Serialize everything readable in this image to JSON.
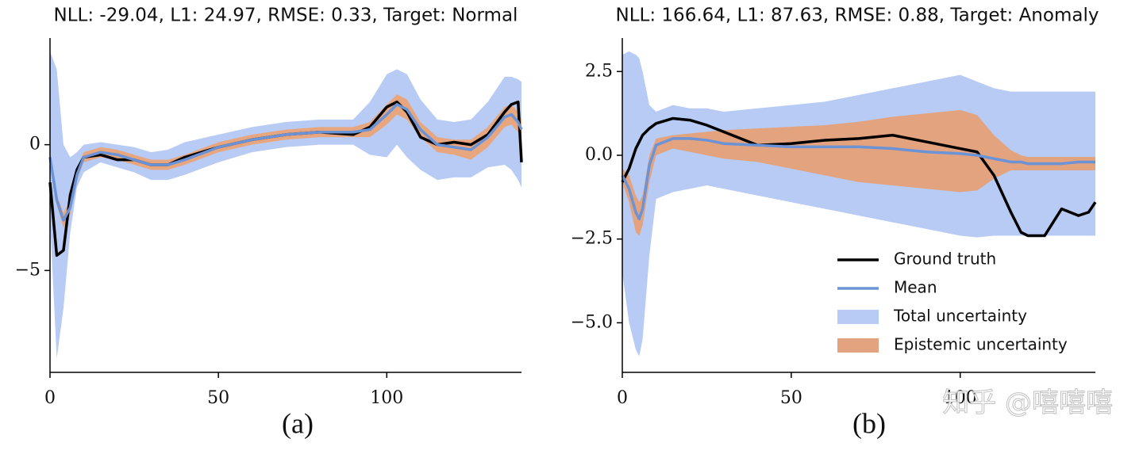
{
  "chart_data": [
    {
      "type": "line",
      "title": "NLL: -29.04, L1: 24.97, RMSE: 0.33, Target: Normal",
      "caption": "(a)",
      "x": [
        0,
        2,
        4,
        6,
        8,
        10,
        15,
        20,
        25,
        30,
        35,
        40,
        50,
        60,
        70,
        80,
        90,
        95,
        100,
        103,
        106,
        110,
        115,
        120,
        125,
        130,
        135,
        137,
        139,
        140
      ],
      "xlim": [
        0,
        140
      ],
      "xticks": [
        0,
        50,
        100
      ],
      "ylim": [
        -9.05,
        4.24
      ],
      "yticks": [
        {
          "value": -5,
          "label": "−5"
        },
        0
      ],
      "series": [
        {
          "color": "#000000",
          "values": [
            -1.5,
            -4.4,
            -4.2,
            -2.0,
            -1.0,
            -0.5,
            -0.4,
            -0.6,
            -0.6,
            -0.8,
            -0.8,
            -0.5,
            -0.1,
            0.2,
            0.4,
            0.5,
            0.4,
            0.7,
            1.5,
            1.7,
            1.3,
            0.3,
            0.0,
            0.1,
            0.0,
            0.4,
            1.3,
            1.6,
            1.7,
            -0.7
          ]
        },
        {
          "color": "#6b93d6",
          "values": [
            -0.5,
            -2.2,
            -3.0,
            -2.5,
            -1.2,
            -0.5,
            -0.3,
            -0.4,
            -0.6,
            -0.8,
            -0.8,
            -0.6,
            -0.1,
            0.2,
            0.4,
            0.5,
            0.5,
            0.6,
            1.2,
            1.6,
            1.4,
            0.6,
            0.0,
            -0.1,
            -0.2,
            0.3,
            1.1,
            1.2,
            0.9,
            0.6
          ]
        },
        {
          "color": "#b7cbf4",
          "upper": [
            3.7,
            3.0,
            0.0,
            -0.5,
            -0.3,
            0.0,
            0.1,
            0.0,
            -0.1,
            -0.3,
            -0.2,
            0.1,
            0.4,
            0.7,
            0.9,
            1.0,
            1.0,
            1.7,
            2.8,
            3.0,
            2.8,
            1.8,
            1.0,
            0.9,
            1.0,
            1.7,
            2.7,
            2.7,
            2.6,
            2.5
          ],
          "lower": [
            -3.0,
            -8.5,
            -6.5,
            -3.5,
            -1.7,
            -1.1,
            -0.7,
            -0.9,
            -1.1,
            -1.4,
            -1.4,
            -1.2,
            -0.7,
            -0.3,
            -0.1,
            0.0,
            0.0,
            -0.4,
            -0.5,
            0.0,
            -0.5,
            -1.0,
            -1.4,
            -1.3,
            -1.3,
            -0.9,
            -0.8,
            -1.0,
            -1.4,
            -1.7
          ]
        },
        {
          "color": "#e8a67f",
          "upper": [
            -0.3,
            -2.0,
            -2.7,
            -2.2,
            -1.0,
            -0.3,
            -0.1,
            -0.2,
            -0.4,
            -0.6,
            -0.6,
            -0.4,
            0.1,
            0.4,
            0.6,
            0.7,
            0.7,
            0.9,
            1.6,
            2.0,
            1.8,
            0.9,
            0.3,
            0.2,
            0.2,
            0.7,
            1.5,
            1.6,
            1.3,
            1.0
          ],
          "lower": [
            -0.7,
            -2.4,
            -3.3,
            -2.8,
            -1.4,
            -0.7,
            -0.5,
            -0.6,
            -0.8,
            -1.0,
            -1.0,
            -0.8,
            -0.3,
            0.0,
            0.2,
            0.3,
            0.3,
            0.3,
            0.8,
            1.2,
            1.0,
            0.3,
            -0.3,
            -0.4,
            -0.6,
            -0.1,
            0.7,
            0.8,
            0.5,
            0.2
          ]
        }
      ]
    },
    {
      "type": "line",
      "title": "NLL: 166.64, L1: 87.63, RMSE: 0.88, Target: Anomaly",
      "caption": "(b)",
      "x": [
        0,
        2,
        4,
        5,
        6,
        8,
        10,
        15,
        20,
        25,
        30,
        40,
        50,
        60,
        70,
        80,
        90,
        100,
        105,
        110,
        115,
        118,
        120,
        125,
        130,
        135,
        138,
        140
      ],
      "xlim": [
        0,
        140
      ],
      "xticks": [
        0,
        50,
        100
      ],
      "ylim": [
        -6.48,
        3.5
      ],
      "yticks": [
        {
          "value": -5,
          "label": "−5.0"
        },
        {
          "value": -2.5,
          "label": "−2.5"
        },
        {
          "value": 0,
          "label": "0.0"
        },
        2.5
      ],
      "legend": "lower right",
      "watermark": "知乎 @嘻嘻嘻",
      "series": [
        {
          "name": "Ground truth",
          "color": "#000000",
          "values": [
            -0.8,
            -0.4,
            0.2,
            0.4,
            0.6,
            0.8,
            0.95,
            1.1,
            1.05,
            0.9,
            0.7,
            0.3,
            0.35,
            0.45,
            0.5,
            0.6,
            0.4,
            0.2,
            0.1,
            -0.6,
            -1.7,
            -2.3,
            -2.4,
            -2.4,
            -1.6,
            -1.8,
            -1.7,
            -1.4
          ]
        },
        {
          "name": "Mean",
          "color": "#6b93d6",
          "values": [
            -0.6,
            -1.0,
            -1.7,
            -1.9,
            -1.6,
            -0.3,
            0.3,
            0.5,
            0.5,
            0.45,
            0.35,
            0.3,
            0.25,
            0.25,
            0.25,
            0.2,
            0.1,
            0.05,
            0.0,
            -0.1,
            -0.2,
            -0.2,
            -0.25,
            -0.25,
            -0.25,
            -0.2,
            -0.2,
            -0.2
          ]
        },
        {
          "name": "Total uncertainty",
          "color": "#b7cbf4",
          "upper": [
            3.0,
            3.1,
            3.0,
            2.9,
            2.5,
            1.5,
            1.3,
            1.5,
            1.4,
            1.4,
            1.3,
            1.4,
            1.5,
            1.6,
            1.8,
            2.0,
            2.2,
            2.4,
            2.2,
            2.0,
            1.9,
            1.9,
            1.9,
            1.9,
            1.9,
            1.9,
            1.9,
            1.9
          ],
          "lower": [
            -3.5,
            -5.0,
            -5.8,
            -6.0,
            -5.5,
            -3.0,
            -1.3,
            -1.1,
            -1.0,
            -0.9,
            -1.0,
            -1.2,
            -1.4,
            -1.6,
            -1.8,
            -2.0,
            -2.2,
            -2.4,
            -2.45,
            -2.4,
            -2.4,
            -2.4,
            -2.4,
            -2.4,
            -2.4,
            -2.4,
            -2.4,
            -2.4
          ]
        },
        {
          "name": "Epistemic uncertainty",
          "color": "#e3a37e",
          "upper": [
            -0.4,
            -0.6,
            -1.2,
            -1.4,
            -1.2,
            0.0,
            0.5,
            0.6,
            0.65,
            0.7,
            0.75,
            0.8,
            0.85,
            0.9,
            1.0,
            1.15,
            1.25,
            1.35,
            1.2,
            0.6,
            0.15,
            0.0,
            -0.05,
            -0.05,
            -0.05,
            -0.05,
            -0.05,
            -0.05
          ],
          "lower": [
            -0.8,
            -1.4,
            -2.3,
            -2.4,
            -2.1,
            -0.8,
            0.0,
            0.2,
            0.1,
            0.0,
            -0.1,
            -0.2,
            -0.4,
            -0.6,
            -0.8,
            -0.9,
            -1.0,
            -1.1,
            -1.05,
            -0.7,
            -0.45,
            -0.45,
            -0.45,
            -0.45,
            -0.45,
            -0.45,
            -0.45,
            -0.45
          ]
        }
      ]
    }
  ]
}
